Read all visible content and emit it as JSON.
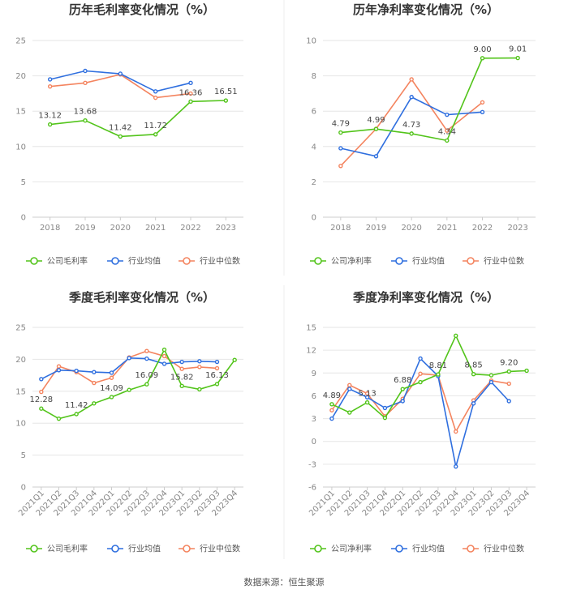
{
  "source": "数据来源：恒生聚源",
  "colors": {
    "company": "#52c41a",
    "avg": "#2f6fdf",
    "median": "#f4845f",
    "grid": "#e6e6e6"
  },
  "chart_data": [
    {
      "id": "annual-gross",
      "type": "line",
      "title": "历年毛利率变化情况（%）",
      "categories": [
        "2018",
        "2019",
        "2020",
        "2021",
        "2022",
        "2023"
      ],
      "yticks": [
        0,
        5,
        10,
        15,
        20,
        25
      ],
      "ylim": [
        0,
        25
      ],
      "rotate_x": false,
      "series": [
        {
          "key": "company",
          "name": "公司毛利率",
          "values": [
            13.12,
            13.68,
            11.42,
            11.72,
            16.36,
            16.51
          ]
        },
        {
          "key": "avg",
          "name": "行业均值",
          "values": [
            19.5,
            20.7,
            20.3,
            17.8,
            19.0,
            null
          ]
        },
        {
          "key": "median",
          "name": "行业中位数",
          "values": [
            18.5,
            19.0,
            20.2,
            16.9,
            17.5,
            null
          ]
        }
      ],
      "labels": [
        {
          "i": 0,
          "text": "13.12"
        },
        {
          "i": 1,
          "text": "13.68"
        },
        {
          "i": 2,
          "text": "11.42"
        },
        {
          "i": 3,
          "text": "11.72"
        },
        {
          "i": 4,
          "text": "16.36"
        },
        {
          "i": 5,
          "text": "16.51"
        }
      ]
    },
    {
      "id": "annual-net",
      "type": "line",
      "title": "历年净利率变化情况（%）",
      "categories": [
        "2018",
        "2019",
        "2020",
        "2021",
        "2022",
        "2023"
      ],
      "yticks": [
        0,
        2,
        4,
        6,
        8,
        10
      ],
      "ylim": [
        0,
        10
      ],
      "rotate_x": false,
      "series": [
        {
          "key": "company",
          "name": "公司净利率",
          "values": [
            4.79,
            4.99,
            4.73,
            4.34,
            9.0,
            9.01
          ]
        },
        {
          "key": "avg",
          "name": "行业均值",
          "values": [
            3.9,
            3.45,
            6.8,
            5.8,
            5.95,
            null
          ]
        },
        {
          "key": "median",
          "name": "行业中位数",
          "values": [
            2.9,
            5.0,
            7.8,
            4.9,
            6.5,
            null
          ]
        }
      ],
      "labels": [
        {
          "i": 0,
          "text": "4.79"
        },
        {
          "i": 1,
          "text": "4.99"
        },
        {
          "i": 2,
          "text": "4.73"
        },
        {
          "i": 3,
          "text": "4.34"
        },
        {
          "i": 4,
          "text": "9.00"
        },
        {
          "i": 5,
          "text": "9.01"
        }
      ]
    },
    {
      "id": "quarterly-gross",
      "type": "line",
      "title": "季度毛利率变化情况（%）",
      "categories": [
        "2021Q1",
        "2021Q2",
        "2021Q3",
        "2021Q4",
        "2022Q1",
        "2022Q2",
        "2022Q3",
        "2022Q4",
        "2023Q1",
        "2023Q2",
        "2023Q3",
        "2023Q4"
      ],
      "yticks": [
        0,
        5,
        10,
        15,
        20,
        25
      ],
      "ylim": [
        0,
        25
      ],
      "rotate_x": true,
      "series": [
        {
          "key": "company",
          "name": "公司毛利率",
          "values": [
            12.28,
            10.7,
            11.42,
            13.1,
            14.09,
            15.2,
            16.09,
            21.5,
            15.82,
            15.3,
            16.13,
            19.9
          ]
        },
        {
          "key": "avg",
          "name": "行业均值",
          "values": [
            16.9,
            18.3,
            18.2,
            18.0,
            17.9,
            20.2,
            20.1,
            19.3,
            19.6,
            19.7,
            19.6,
            null
          ]
        },
        {
          "key": "median",
          "name": "行业中位数",
          "values": [
            14.9,
            18.9,
            18.0,
            16.3,
            17.1,
            20.3,
            21.3,
            20.5,
            18.5,
            18.8,
            18.6,
            null
          ]
        }
      ],
      "labels": [
        {
          "i": 0,
          "text": "12.28"
        },
        {
          "i": 2,
          "text": "11.42"
        },
        {
          "i": 4,
          "text": "14.09"
        },
        {
          "i": 6,
          "text": "16.09"
        },
        {
          "i": 8,
          "text": "15.82"
        },
        {
          "i": 10,
          "text": "16.13"
        }
      ]
    },
    {
      "id": "quarterly-net",
      "type": "line",
      "title": "季度净利率变化情况（%）",
      "categories": [
        "2021Q1",
        "2021Q2",
        "2021Q3",
        "2021Q4",
        "2022Q1",
        "2022Q2",
        "2022Q3",
        "2022Q4",
        "2023Q1",
        "2023Q2",
        "2023Q3",
        "2023Q4"
      ],
      "yticks": [
        -6,
        -3,
        0,
        3,
        6,
        9,
        12,
        15
      ],
      "ylim": [
        -6,
        15
      ],
      "rotate_x": true,
      "series": [
        {
          "key": "company",
          "name": "公司净利率",
          "values": [
            4.89,
            3.8,
            5.13,
            3.1,
            6.88,
            7.8,
            8.81,
            13.9,
            8.85,
            8.7,
            9.2,
            9.3
          ]
        },
        {
          "key": "avg",
          "name": "行业均值",
          "values": [
            3.0,
            6.9,
            5.8,
            4.4,
            5.3,
            10.9,
            8.6,
            -3.3,
            5.0,
            7.8,
            5.3,
            null
          ]
        },
        {
          "key": "median",
          "name": "行业中位数",
          "values": [
            4.1,
            7.4,
            6.3,
            3.3,
            5.6,
            8.9,
            8.7,
            1.3,
            5.4,
            8.0,
            7.6,
            null
          ]
        }
      ],
      "labels": [
        {
          "i": 0,
          "text": "4.89"
        },
        {
          "i": 2,
          "text": "5.13"
        },
        {
          "i": 4,
          "text": "6.88"
        },
        {
          "i": 6,
          "text": "8.81"
        },
        {
          "i": 8,
          "text": "8.85"
        },
        {
          "i": 10,
          "text": "9.20"
        }
      ]
    }
  ]
}
